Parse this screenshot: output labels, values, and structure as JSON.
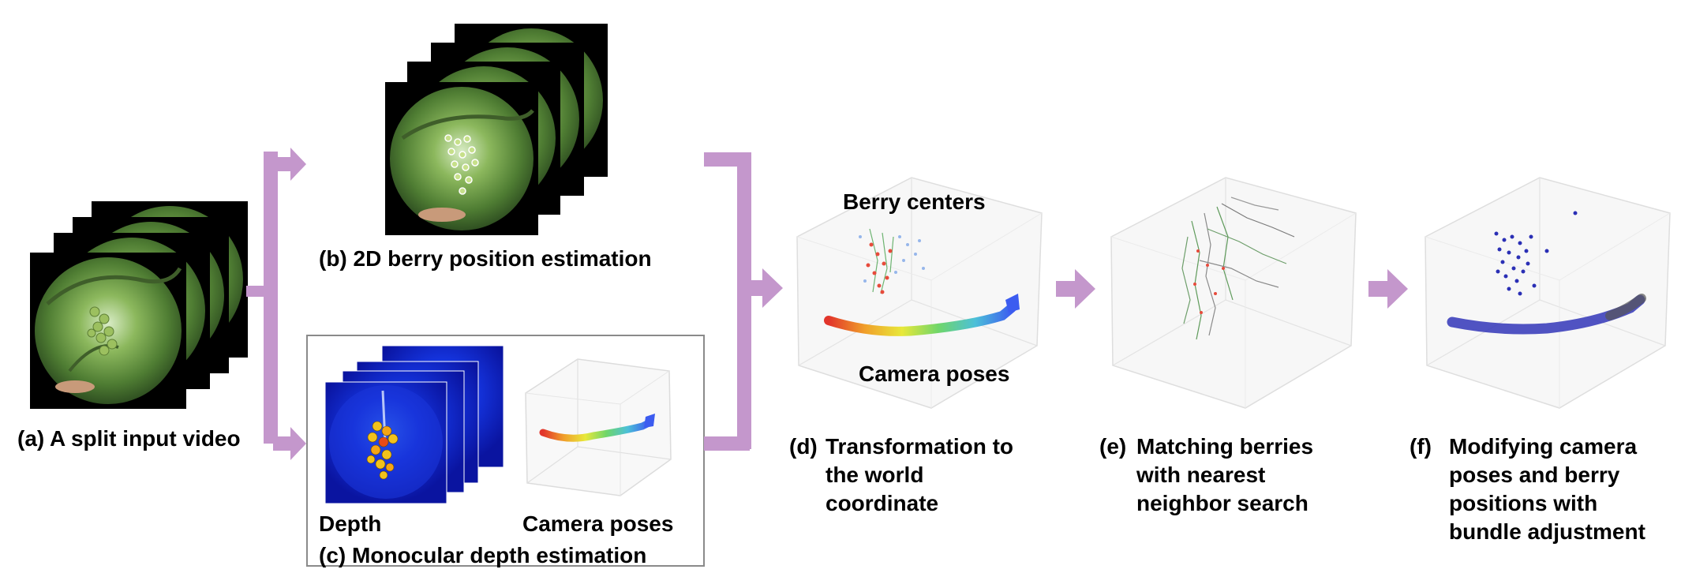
{
  "panels": {
    "a": {
      "tag": "(a)",
      "caption": "A split input video"
    },
    "b": {
      "tag": "(b)",
      "caption": "2D berry position estimation"
    },
    "c": {
      "tag": "(c)",
      "caption": "Monocular depth estimation",
      "depth_label": "Depth",
      "poses_label": "Camera poses"
    },
    "d": {
      "tag": "(d)",
      "caption_lines": [
        "Transformation to",
        "the world",
        "coordinate"
      ],
      "berry_label": "Berry centers",
      "poses_label": "Camera poses"
    },
    "e": {
      "tag": "(e)",
      "caption_lines": [
        "Matching berries",
        "with nearest",
        "neighbor search"
      ]
    },
    "f": {
      "tag": "(f)",
      "caption_lines": [
        "Modifying camera",
        "poses and berry",
        "positions with",
        "bundle adjustment"
      ]
    }
  },
  "colors": {
    "arrow": "#c497cc",
    "frame_bg": "#000000",
    "foliage": "#6f9a48",
    "depth_bg": "#0a1fcc",
    "box_border": "#8a8a8a",
    "cube_edge": "#d6d6d6",
    "optimized_points": "#2a2fb5"
  }
}
